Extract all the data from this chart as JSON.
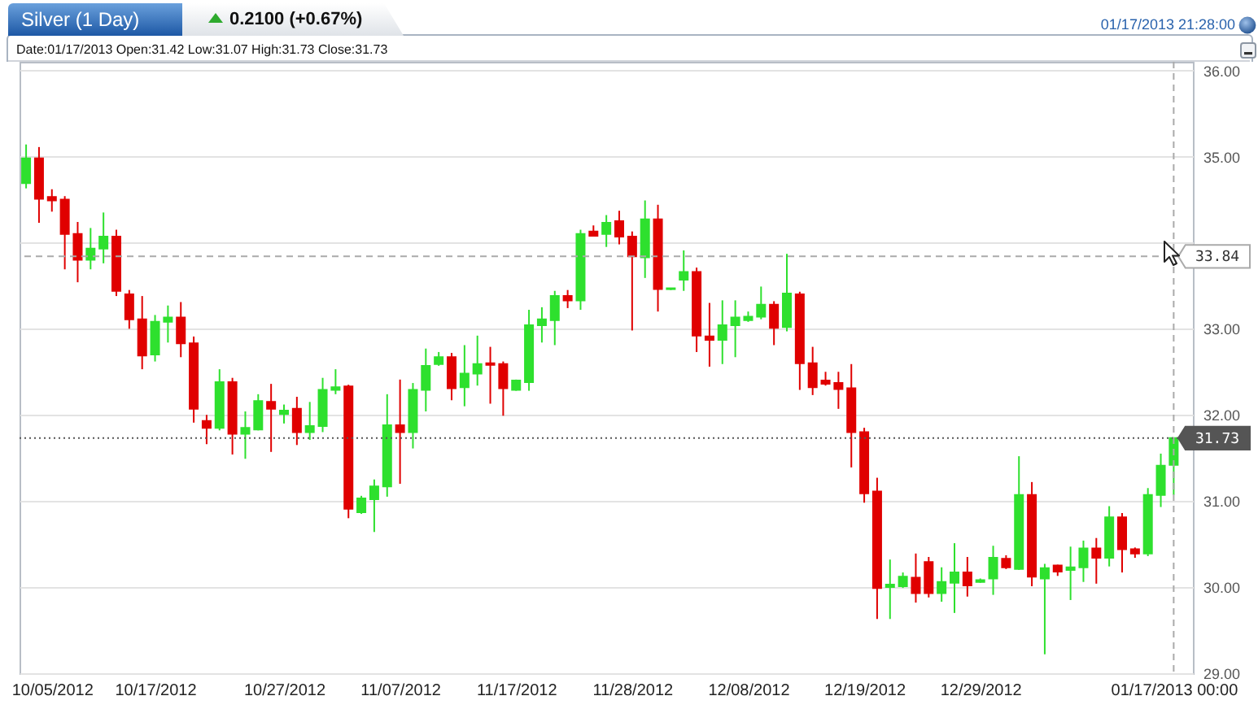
{
  "chart_data": {
    "type": "candlestick",
    "title": "Silver (1 Day)",
    "subtitle": "0.2100 (+0.67%)",
    "annotations": [
      "01/17/2013 21:28:00",
      "Date:01/17/2013 Open:31.42 Low:31.07 High:31.73 Close:31.73"
    ],
    "categories": [
      null,
      null,
      "10/05/2012",
      null,
      null,
      null,
      null,
      null,
      null,
      null,
      "10/17/2012",
      null,
      null,
      null,
      null,
      null,
      null,
      null,
      null,
      null,
      "10/27/2012",
      null,
      null,
      null,
      null,
      null,
      null,
      null,
      null,
      "11/07/2012",
      null,
      null,
      null,
      null,
      null,
      null,
      null,
      null,
      "11/17/2012",
      null,
      null,
      null,
      null,
      null,
      null,
      null,
      null,
      "11/28/2012",
      null,
      null,
      null,
      null,
      null,
      null,
      null,
      null,
      "12/08/2012",
      null,
      null,
      null,
      null,
      null,
      null,
      null,
      null,
      "12/19/2012",
      null,
      null,
      null,
      null,
      null,
      null,
      null,
      null,
      "12/29/2012",
      null,
      null,
      null,
      null,
      null,
      null,
      null,
      null,
      null,
      null,
      null,
      null,
      null,
      null,
      "01/17/2013 00:00"
    ],
    "ohlc": [
      [
        34.69,
        35.14,
        34.63,
        34.98
      ],
      [
        34.98,
        35.11,
        34.23,
        34.51
      ],
      [
        34.53,
        34.62,
        34.36,
        34.49
      ],
      [
        34.5,
        34.54,
        33.69,
        34.1
      ],
      [
        34.1,
        34.24,
        33.54,
        33.8
      ],
      [
        33.8,
        34.17,
        33.69,
        33.93
      ],
      [
        33.93,
        34.35,
        33.76,
        34.07
      ],
      [
        34.07,
        34.15,
        33.38,
        33.44
      ],
      [
        33.4,
        33.45,
        33.0,
        33.11
      ],
      [
        33.11,
        33.38,
        32.53,
        32.69
      ],
      [
        32.7,
        33.16,
        32.62,
        33.08
      ],
      [
        33.08,
        33.27,
        32.84,
        33.13
      ],
      [
        33.13,
        33.31,
        32.67,
        32.83
      ],
      [
        32.83,
        32.91,
        31.91,
        32.07
      ],
      [
        31.93,
        32.0,
        31.66,
        31.85
      ],
      [
        31.85,
        32.53,
        31.82,
        32.38
      ],
      [
        32.38,
        32.43,
        31.54,
        31.78
      ],
      [
        31.78,
        32.04,
        31.49,
        31.85
      ],
      [
        31.83,
        32.24,
        31.82,
        32.16
      ],
      [
        32.15,
        32.36,
        31.57,
        32.07
      ],
      [
        32.01,
        32.12,
        31.9,
        32.05
      ],
      [
        32.07,
        32.21,
        31.65,
        31.8
      ],
      [
        31.8,
        32.15,
        31.71,
        31.87
      ],
      [
        31.87,
        32.43,
        31.8,
        32.29
      ],
      [
        32.29,
        32.53,
        32.24,
        32.32
      ],
      [
        32.33,
        32.35,
        30.8,
        30.91
      ],
      [
        30.87,
        31.06,
        30.85,
        31.03
      ],
      [
        31.02,
        31.25,
        30.64,
        31.17
      ],
      [
        31.17,
        32.24,
        31.05,
        31.88
      ],
      [
        31.88,
        32.41,
        31.2,
        31.8
      ],
      [
        31.8,
        32.37,
        31.61,
        32.29
      ],
      [
        32.29,
        32.77,
        32.04,
        32.57
      ],
      [
        32.59,
        32.73,
        32.57,
        32.67
      ],
      [
        32.67,
        32.72,
        32.17,
        32.31
      ],
      [
        32.32,
        32.81,
        32.1,
        32.48
      ],
      [
        32.48,
        32.92,
        32.34,
        32.59
      ],
      [
        32.6,
        32.79,
        32.13,
        32.58
      ],
      [
        32.59,
        32.62,
        31.99,
        32.31
      ],
      [
        32.29,
        32.41,
        32.28,
        32.4
      ],
      [
        32.38,
        33.22,
        32.28,
        33.04
      ],
      [
        33.04,
        33.25,
        32.84,
        33.11
      ],
      [
        33.1,
        33.44,
        32.81,
        33.38
      ],
      [
        33.38,
        33.45,
        33.24,
        33.33
      ],
      [
        33.33,
        34.15,
        33.22,
        34.1
      ],
      [
        34.13,
        34.2,
        34.07,
        34.08
      ],
      [
        34.1,
        34.32,
        33.95,
        34.23
      ],
      [
        34.25,
        34.37,
        33.98,
        34.07
      ],
      [
        34.07,
        34.13,
        32.98,
        33.84
      ],
      [
        33.83,
        34.49,
        33.59,
        34.27
      ],
      [
        34.27,
        34.44,
        33.2,
        33.46
      ],
      [
        33.46,
        33.47,
        33.45,
        33.47
      ],
      [
        33.57,
        33.91,
        33.44,
        33.66
      ],
      [
        33.66,
        33.71,
        32.73,
        32.92
      ],
      [
        32.91,
        33.3,
        32.56,
        32.87
      ],
      [
        32.87,
        33.33,
        32.59,
        33.04
      ],
      [
        33.04,
        33.33,
        32.67,
        33.13
      ],
      [
        33.1,
        33.2,
        33.08,
        33.14
      ],
      [
        33.14,
        33.49,
        33.11,
        33.28
      ],
      [
        33.28,
        33.32,
        32.81,
        33.01
      ],
      [
        33.02,
        33.87,
        32.97,
        33.41
      ],
      [
        33.4,
        33.43,
        32.29,
        32.6
      ],
      [
        32.6,
        32.79,
        32.23,
        32.32
      ],
      [
        32.4,
        32.5,
        32.34,
        32.36
      ],
      [
        32.37,
        32.5,
        32.07,
        32.3
      ],
      [
        32.31,
        32.59,
        31.39,
        31.8
      ],
      [
        31.8,
        31.85,
        30.98,
        31.09
      ],
      [
        31.11,
        31.27,
        29.63,
        29.99
      ],
      [
        30.0,
        30.32,
        29.63,
        30.03
      ],
      [
        30.01,
        30.17,
        29.99,
        30.12
      ],
      [
        30.11,
        30.39,
        29.82,
        29.93
      ],
      [
        30.29,
        30.35,
        29.88,
        29.93
      ],
      [
        29.93,
        30.23,
        29.83,
        30.06
      ],
      [
        30.05,
        30.51,
        29.7,
        30.17
      ],
      [
        30.17,
        30.35,
        29.89,
        30.02
      ],
      [
        30.06,
        30.1,
        30.05,
        30.08
      ],
      [
        30.1,
        30.48,
        29.91,
        30.34
      ],
      [
        30.33,
        30.37,
        30.21,
        30.23
      ],
      [
        30.21,
        31.52,
        30.2,
        31.07
      ],
      [
        31.07,
        31.22,
        30.01,
        30.12
      ],
      [
        30.1,
        30.27,
        29.22,
        30.22
      ],
      [
        30.25,
        30.26,
        30.13,
        30.18
      ],
      [
        30.2,
        30.47,
        29.85,
        30.23
      ],
      [
        30.23,
        30.54,
        30.06,
        30.45
      ],
      [
        30.45,
        30.57,
        30.04,
        30.34
      ],
      [
        30.34,
        30.94,
        30.24,
        30.81
      ],
      [
        30.81,
        30.86,
        30.17,
        30.44
      ],
      [
        30.44,
        30.46,
        30.34,
        30.39
      ],
      [
        30.39,
        31.15,
        30.36,
        31.07
      ],
      [
        31.07,
        31.55,
        30.93,
        31.41
      ],
      [
        31.42,
        31.73,
        31.07,
        31.73
      ]
    ],
    "colors": [
      "#2ee02e",
      "#e00000",
      "#e00000",
      "#e00000",
      "#e00000",
      "#2ee02e",
      "#2ee02e",
      "#e00000",
      "#e00000",
      "#e00000",
      "#2ee02e",
      "#2ee02e",
      "#e00000",
      "#e00000",
      "#e00000",
      "#2ee02e",
      "#e00000",
      "#2ee02e",
      "#2ee02e",
      "#e00000",
      "#2ee02e",
      "#e00000",
      "#2ee02e",
      "#2ee02e",
      "#2ee02e",
      "#e00000",
      "#2ee02e",
      "#2ee02e",
      "#2ee02e",
      "#e00000",
      "#2ee02e",
      "#2ee02e",
      "#2ee02e",
      "#e00000",
      "#2ee02e",
      "#2ee02e",
      "#e00000",
      "#e00000",
      "#2ee02e",
      "#2ee02e",
      "#2ee02e",
      "#2ee02e",
      "#e00000",
      "#2ee02e",
      "#e00000",
      "#2ee02e",
      "#e00000",
      "#e00000",
      "#2ee02e",
      "#e00000",
      "#2ee02e",
      "#2ee02e",
      "#e00000",
      "#e00000",
      "#2ee02e",
      "#2ee02e",
      "#2ee02e",
      "#2ee02e",
      "#e00000",
      "#2ee02e",
      "#e00000",
      "#e00000",
      "#e00000",
      "#e00000",
      "#e00000",
      "#e00000",
      "#e00000",
      "#2ee02e",
      "#2ee02e",
      "#e00000",
      "#e00000",
      "#2ee02e",
      "#2ee02e",
      "#e00000",
      "#2ee02e",
      "#2ee02e",
      "#e00000",
      "#2ee02e",
      "#e00000",
      "#2ee02e",
      "#e00000",
      "#2ee02e",
      "#2ee02e",
      "#e00000",
      "#2ee02e",
      "#e00000",
      "#e00000",
      "#2ee02e",
      "#2ee02e",
      "#2ee02e"
    ],
    "ylim": [
      29,
      36.1
    ],
    "yticks": [
      {
        "value": 29,
        "label": "29.00"
      },
      {
        "value": 30,
        "label": "30.00"
      },
      {
        "value": 31,
        "label": "31.00"
      },
      {
        "value": 32,
        "label": "32.00"
      },
      {
        "value": 33,
        "label": "33.00"
      },
      {
        "value": 34,
        "label": null
      },
      {
        "value": 35,
        "label": "35.00"
      },
      {
        "value": 36,
        "label": "36.00"
      }
    ],
    "grid": "y",
    "ref_lines": [
      {
        "axis": "y",
        "value": 33.84,
        "label": "33.84",
        "line_style": "dashed",
        "color": "#aaaaaa"
      },
      {
        "axis": "y",
        "value": 31.73,
        "label": "31.73",
        "line_style": "dotted",
        "color": "#555555"
      },
      {
        "axis": "x",
        "value": "01/17/2013 00:00",
        "line_style": "dashed",
        "color": "#aaaaaa"
      }
    ]
  }
}
